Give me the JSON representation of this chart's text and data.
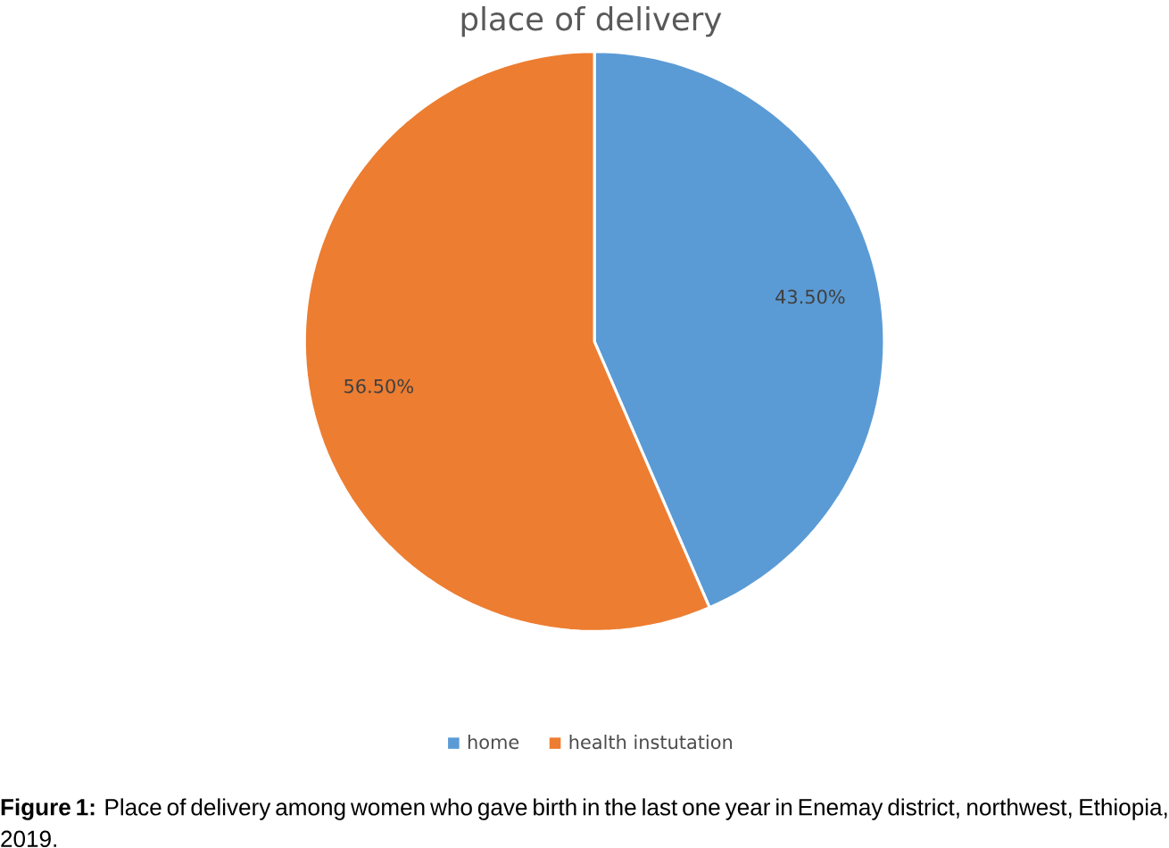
{
  "chart_data": {
    "type": "pie",
    "title": "place of delivery",
    "categories": [
      "home",
      "health instutation"
    ],
    "values": [
      43.5,
      56.5
    ],
    "colors": [
      "#5b9bd5",
      "#ed7d31"
    ],
    "value_labels": [
      "43.50%",
      "56.50%"
    ],
    "legend": "bottom",
    "annotations": [
      "**Figure 1:** Place of delivery among women who gave birth in the last one year in Enemay district, northwest, Ethiopia, 2019."
    ]
  }
}
